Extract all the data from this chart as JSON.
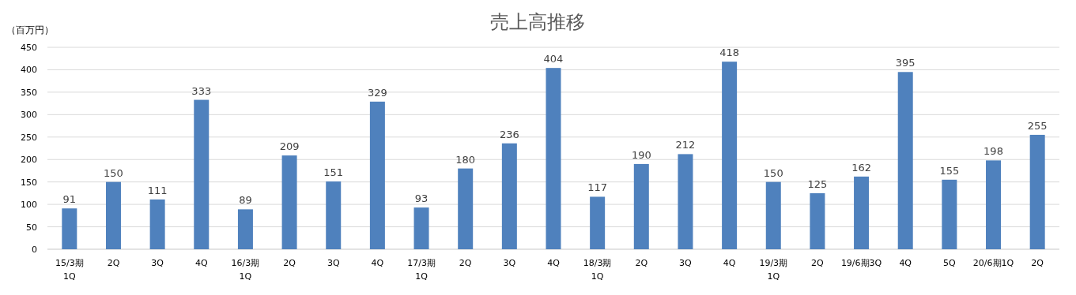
{
  "chart_data": {
    "type": "bar",
    "title": "売上高推移",
    "ylabel": "（百万円）",
    "categories": [
      "15/3期 1Q",
      "2Q",
      "3Q",
      "4Q",
      "16/3期 1Q",
      "2Q",
      "3Q",
      "4Q",
      "17/3期 1Q",
      "2Q",
      "3Q",
      "4Q",
      "18/3期 1Q",
      "2Q",
      "3Q",
      "4Q",
      "19/3期 1Q",
      "2Q",
      "19/6期3Q",
      "4Q",
      "5Q",
      "20/6期1Q",
      "2Q"
    ],
    "values": [
      91,
      150,
      111,
      333,
      89,
      209,
      151,
      329,
      93,
      180,
      236,
      404,
      117,
      190,
      212,
      418,
      150,
      125,
      162,
      395,
      155,
      198,
      255
    ],
    "color": "#4f81bd",
    "ylim": [
      0,
      450
    ],
    "yticks": [
      0,
      50,
      100,
      150,
      200,
      250,
      300,
      350,
      400,
      450
    ],
    "grid": "y",
    "data_labels": true
  }
}
